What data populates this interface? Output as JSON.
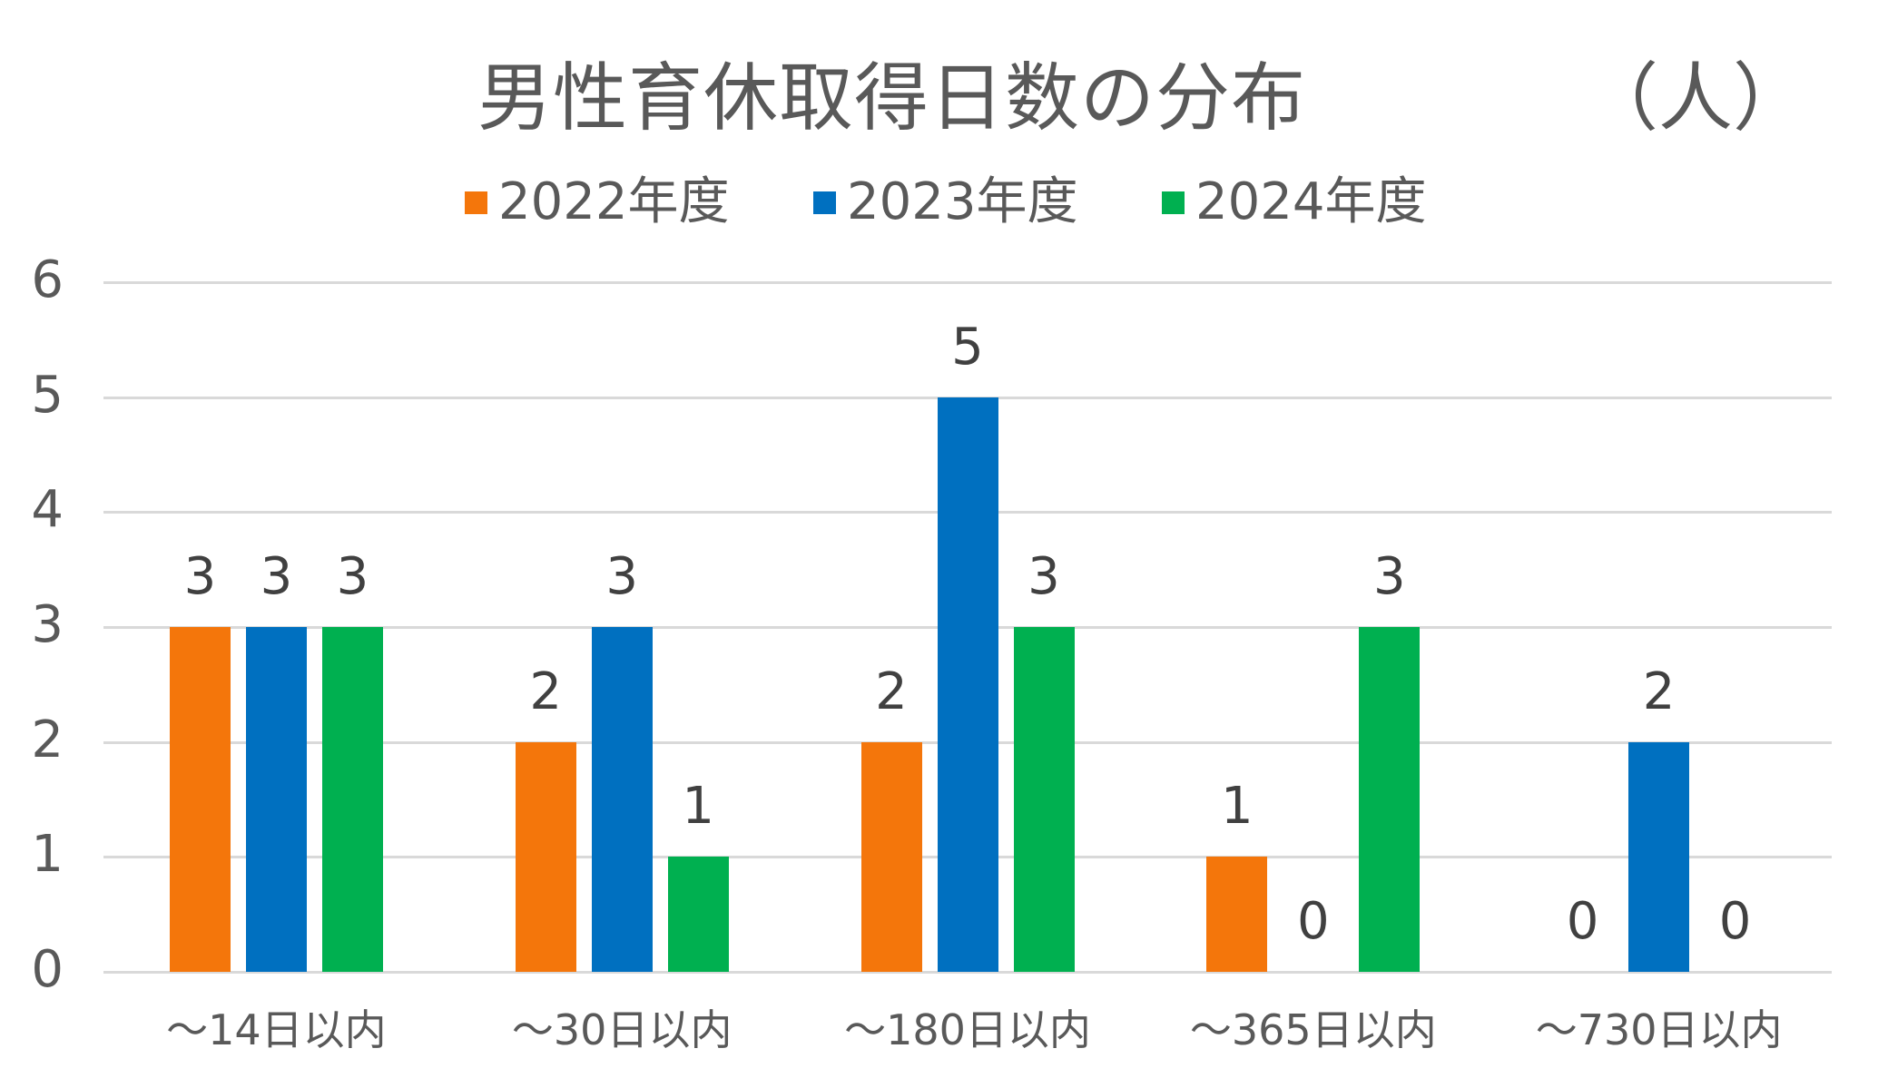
{
  "title": {
    "main": "男性育休取得日数の分布",
    "unit": "（人）"
  },
  "legend": [
    {
      "label": "2022年度",
      "color": "#F4760B"
    },
    {
      "label": "2023年度",
      "color": "#0070C0"
    },
    {
      "label": "2024年度",
      "color": "#00B050"
    }
  ],
  "y_axis": {
    "ticks": [
      "0",
      "1",
      "2",
      "3",
      "4",
      "5",
      "6"
    ]
  },
  "x_axis": {
    "labels": [
      "～14日以内",
      "～30日以内",
      "～180日以内",
      "～365日以内",
      "～730日以内"
    ]
  },
  "chart_data": {
    "type": "bar",
    "title": "男性育休取得日数の分布（人）",
    "xlabel": "",
    "ylabel": "人",
    "categories": [
      "～14日以内",
      "～30日以内",
      "～180日以内",
      "～365日以内",
      "～730日以内"
    ],
    "series": [
      {
        "name": "2022年度",
        "color": "#F4760B",
        "values": [
          3,
          2,
          2,
          1,
          0
        ]
      },
      {
        "name": "2023年度",
        "color": "#0070C0",
        "values": [
          3,
          3,
          5,
          0,
          2
        ]
      },
      {
        "name": "2024年度",
        "color": "#00B050",
        "values": [
          3,
          1,
          3,
          3,
          0
        ]
      }
    ],
    "ylim": [
      0,
      6
    ],
    "yticks": [
      0,
      1,
      2,
      3,
      4,
      5,
      6
    ],
    "grid": true,
    "legend_position": "top",
    "data_labels": true
  }
}
